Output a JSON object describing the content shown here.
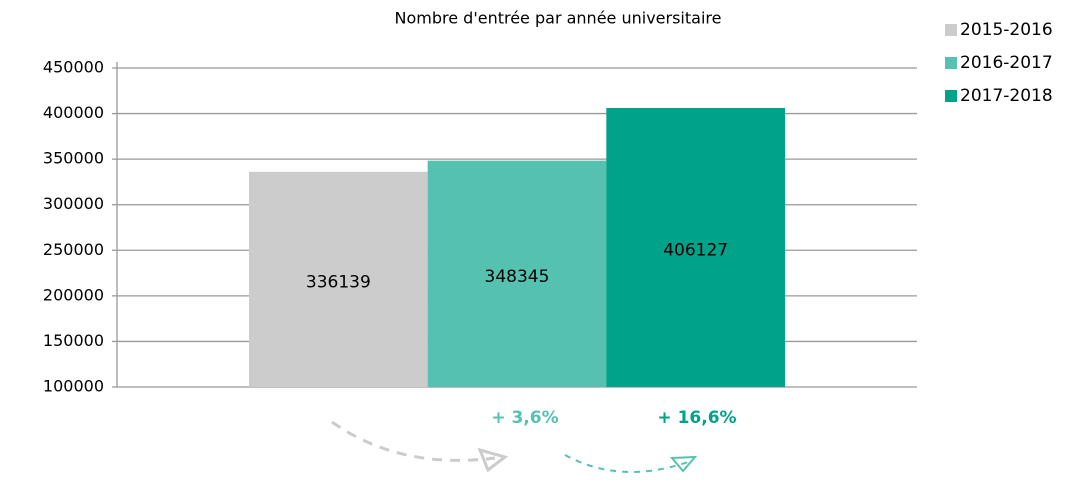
{
  "chart_data": {
    "type": "bar",
    "title": "Nombre d'entrée par année universitaire",
    "categories": [
      null
    ],
    "series": [
      {
        "name": "2015-2016",
        "color": "#cccccc",
        "values": [
          336139
        ]
      },
      {
        "name": "2016-2017",
        "color": "#55c2b1",
        "values": [
          348345
        ]
      },
      {
        "name": "2017-2018",
        "color": "#00a28a",
        "values": [
          406127
        ]
      }
    ],
    "ylim": [
      100000,
      450000
    ],
    "yticks": [
      100000,
      150000,
      200000,
      250000,
      300000,
      350000,
      400000,
      450000
    ],
    "grid": true,
    "legend": "right",
    "annotations": [
      {
        "text": "+ 3,6%",
        "color": "#55c2b1"
      },
      {
        "text": "+ 16,6%",
        "color": "#00a28a"
      }
    ]
  }
}
